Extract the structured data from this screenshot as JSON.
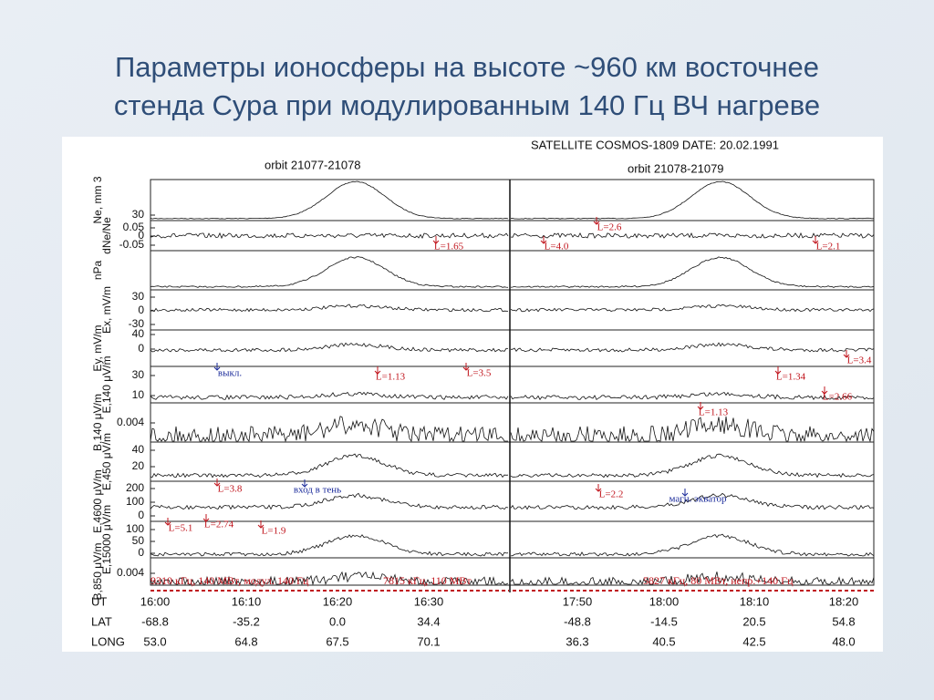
{
  "slide": {
    "title": [
      "Параметры ионосферы на высоте ~960 км восточнее",
      "стенда Сура при модулированным 140 Гц ВЧ нагреве"
    ],
    "figure": {
      "header": "SATELLITE  COSMOS-1809   DATE: 20.02.1991",
      "orbit_left": "orbit  21077-21078",
      "orbit_right": "orbit  21078-21079",
      "panels": [
        {
          "label": "Ne, mm 3",
          "ticks": [
            "30"
          ]
        },
        {
          "label": "dNe/Ne",
          "ticks": [
            "0.05",
            "0",
            "-0.05"
          ]
        },
        {
          "label": "nPa",
          "ticks": []
        },
        {
          "label": "Ex, mV/m",
          "ticks": [
            "30",
            "0",
            "-30"
          ]
        },
        {
          "label": "Ey, mV/m",
          "ticks": [
            "40",
            "0"
          ]
        },
        {
          "label": "E,140 μV/m",
          "ticks": [
            "30",
            "10"
          ]
        },
        {
          "label": "B,140 μV/m",
          "ticks": [
            "0.004"
          ]
        },
        {
          "label": "E,450 μV/m",
          "ticks": [
            "40",
            "20"
          ]
        },
        {
          "label": "E,4600 μV/m",
          "ticks": [
            "200",
            "100",
            "0"
          ]
        },
        {
          "label": "E,15000 μV/m",
          "ticks": [
            "100",
            "50",
            "0"
          ]
        },
        {
          "label": "B,850 μV/m",
          "ticks": [
            "0.004"
          ]
        }
      ],
      "annotations": [
        "L=1.65",
        "L=2.6",
        "L=4.0",
        "L=2.1",
        "выкл.",
        "L=1.13",
        "L=3.5",
        "L=1.34",
        "L=3.4",
        "L=2.66",
        "L=1.13",
        "L=3.8",
        "вход в тень",
        "L=2.2",
        "магн. экватор",
        "L=5.1",
        "L=2.74",
        "L=1.9"
      ],
      "notes": [
        "9310 кГц, 140 МВт, модул. 140 Гц",
        "7815 кГц, 110 МВт",
        "5827 кГц, 80 МВт, непр.+140 Гц"
      ],
      "table": [
        {
          "label": "UT",
          "values": [
            "16:00",
            "16:10",
            "16:20",
            "16:30",
            "17:50",
            "18:00",
            "18:10",
            "18:20"
          ]
        },
        {
          "label": "LAT",
          "values": [
            "-68.8",
            "-35.2",
            "0.0",
            "34.4",
            "-48.8",
            "-14.5",
            "20.5",
            "54.8"
          ]
        },
        {
          "label": "LONG",
          "values": [
            "53.0",
            "64.8",
            "67.5",
            "70.1",
            "36.3",
            "40.5",
            "42.5",
            "48.0"
          ]
        }
      ]
    }
  }
}
